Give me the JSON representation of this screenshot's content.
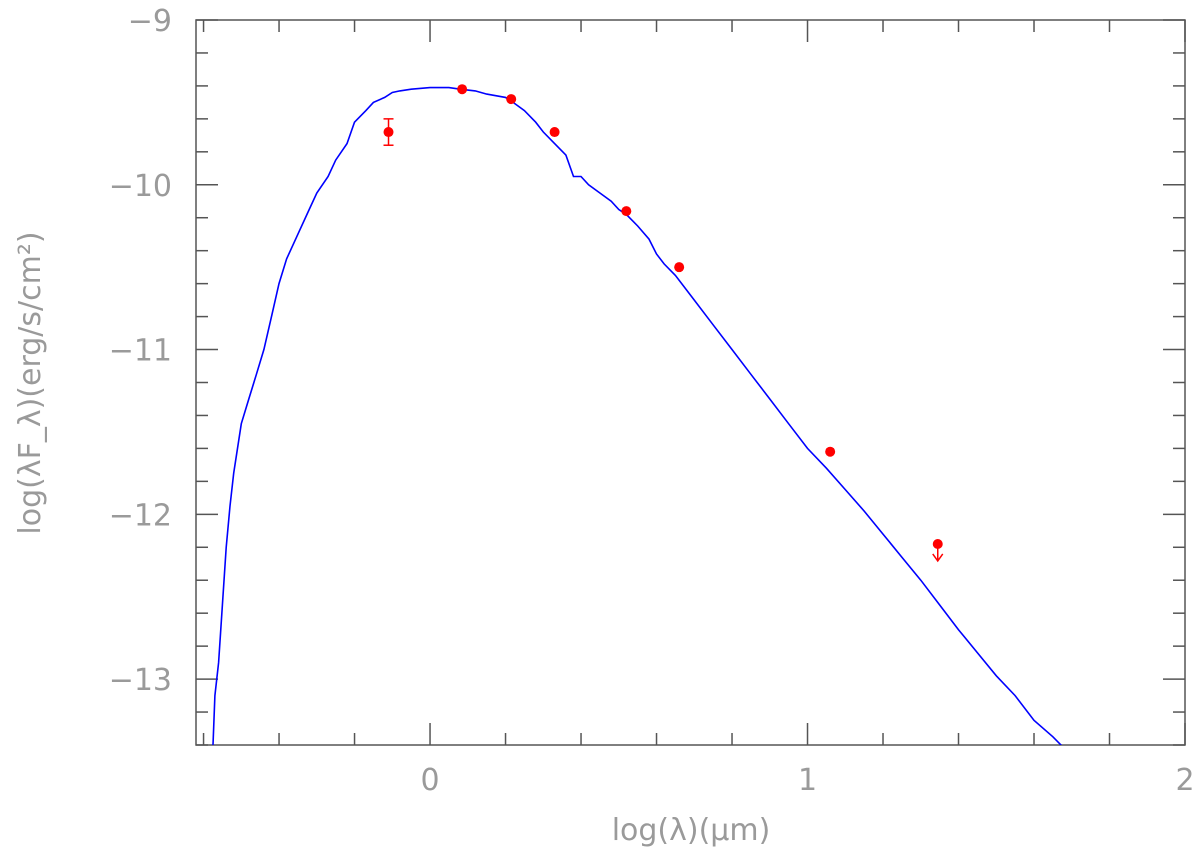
{
  "chart_data": {
    "type": "line",
    "title": "",
    "xlabel": "log(λ)(μm)",
    "ylabel": "log(λF_λ)(erg/s/cm²)",
    "xlim": [
      -0.62,
      2.0
    ],
    "ylim": [
      -13.4,
      -9.0
    ],
    "x_ticks": [
      0,
      1,
      2
    ],
    "x_tick_labels": [
      "0",
      "1",
      "2"
    ],
    "y_ticks": [
      -9,
      -10,
      -11,
      -12,
      -13
    ],
    "y_tick_labels": [
      "−9",
      "−10",
      "−11",
      "−12",
      "−13"
    ],
    "x_minor_step": 0.2,
    "y_minor_step": 0.2,
    "grid": false,
    "colors": {
      "model": "#0000ff",
      "photometry": "#ff0000",
      "axes": "#555555",
      "text": "#9a9a9a"
    },
    "series": [
      {
        "kind": "model_spectrum",
        "x": [
          -0.575,
          -0.57,
          -0.56,
          -0.55,
          -0.54,
          -0.53,
          -0.52,
          -0.5,
          -0.48,
          -0.46,
          -0.44,
          -0.42,
          -0.4,
          -0.38,
          -0.35,
          -0.32,
          -0.3,
          -0.27,
          -0.25,
          -0.22,
          -0.2,
          -0.17,
          -0.15,
          -0.12,
          -0.1,
          -0.08,
          -0.05,
          0.0,
          0.05,
          0.08,
          0.12,
          0.15,
          0.2,
          0.22,
          0.25,
          0.28,
          0.3,
          0.33,
          0.36,
          0.38,
          0.4,
          0.42,
          0.45,
          0.48,
          0.5,
          0.52,
          0.55,
          0.58,
          0.6,
          0.62,
          0.65,
          0.7,
          0.75,
          0.8,
          0.85,
          0.9,
          0.95,
          1.0,
          1.05,
          1.1,
          1.15,
          1.2,
          1.25,
          1.3,
          1.35,
          1.4,
          1.45,
          1.5,
          1.55,
          1.6,
          1.65,
          1.68
        ],
        "y": [
          -13.4,
          -13.1,
          -12.9,
          -12.55,
          -12.2,
          -11.95,
          -11.75,
          -11.45,
          -11.3,
          -11.15,
          -11.0,
          -10.8,
          -10.6,
          -10.45,
          -10.3,
          -10.15,
          -10.05,
          -9.95,
          -9.85,
          -9.75,
          -9.62,
          -9.55,
          -9.5,
          -9.47,
          -9.44,
          -9.43,
          -9.42,
          -9.41,
          -9.41,
          -9.42,
          -9.43,
          -9.45,
          -9.47,
          -9.5,
          -9.55,
          -9.62,
          -9.68,
          -9.75,
          -9.82,
          -9.95,
          -9.95,
          -10.0,
          -10.05,
          -10.1,
          -10.15,
          -10.18,
          -10.25,
          -10.33,
          -10.42,
          -10.48,
          -10.55,
          -10.7,
          -10.85,
          -11.0,
          -11.15,
          -11.3,
          -11.45,
          -11.6,
          -11.72,
          -11.85,
          -11.98,
          -12.12,
          -12.26,
          -12.4,
          -12.55,
          -12.7,
          -12.84,
          -12.98,
          -13.1,
          -13.25,
          -13.35,
          -13.42
        ]
      },
      {
        "kind": "photometry",
        "x": [
          -0.11,
          0.085,
          0.215,
          0.33,
          0.52,
          0.66,
          1.06
        ],
        "y": [
          -9.68,
          -9.42,
          -9.48,
          -9.68,
          -10.16,
          -10.5,
          -11.62
        ],
        "yerr": [
          0.08,
          0,
          0,
          0,
          0,
          0,
          0
        ]
      },
      {
        "kind": "upper_limit",
        "x": [
          1.345
        ],
        "y": [
          -12.18
        ]
      }
    ]
  }
}
